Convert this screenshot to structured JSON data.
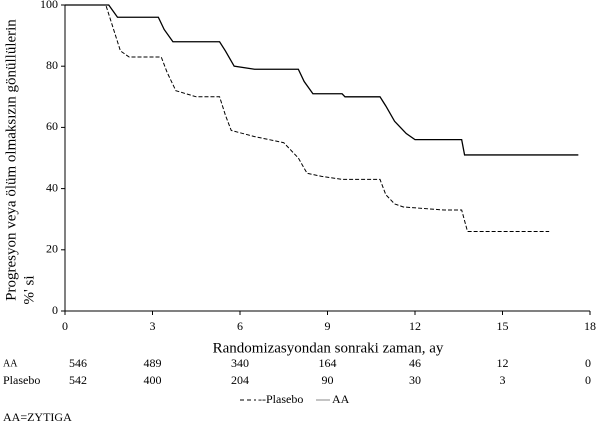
{
  "chart_data": {
    "type": "line",
    "y_label": [
      "Progresyon veya ölüm olmaksızın gönüllülerin",
      "%' si"
    ],
    "x_label": "Randomizasyondan sonraki zaman, ay",
    "xlim": [
      0,
      18
    ],
    "xticks": [
      0,
      3,
      6,
      9,
      12,
      15,
      18
    ],
    "ylim": [
      0,
      100
    ],
    "yticks": [
      0,
      20,
      40,
      60,
      80,
      100
    ],
    "series": [
      {
        "name": "AA",
        "color": "#000000",
        "dash": false,
        "x": [
          0,
          1.5,
          1.8,
          3.2,
          3.4,
          3.7,
          5.3,
          5.5,
          5.8,
          6.5,
          8.0,
          8.2,
          8.5,
          9.5,
          9.6,
          10.8,
          11.0,
          11.3,
          11.7,
          12.0,
          13.6,
          13.7,
          17.6
        ],
        "values": [
          100,
          100,
          96,
          96,
          92,
          88,
          88,
          85,
          80,
          79,
          79,
          75,
          71,
          71,
          70,
          70,
          67,
          62,
          58,
          56,
          56,
          51,
          51
        ]
      },
      {
        "name": "Plasebo",
        "color": "#000000",
        "dash": true,
        "x": [
          0,
          1.4,
          1.9,
          2.2,
          3.3,
          3.5,
          3.8,
          4.5,
          5.3,
          5.5,
          5.7,
          6.5,
          7.5,
          8.0,
          8.3,
          8.8,
          9.5,
          10.8,
          11.0,
          11.3,
          11.6,
          13.0,
          13.6,
          13.8,
          16.6
        ],
        "values": [
          100,
          100,
          85,
          83,
          83,
          78,
          72,
          70,
          70,
          64,
          59,
          57,
          55,
          50,
          45,
          44,
          43,
          43,
          38,
          35,
          34,
          33,
          33,
          26,
          26
        ]
      }
    ],
    "risk_table": [
      {
        "label": "AA",
        "values": [
          546,
          489,
          340,
          164,
          46,
          12,
          0
        ]
      },
      {
        "label": "Plasebo",
        "values": [
          542,
          400,
          204,
          90,
          30,
          3,
          0
        ]
      }
    ],
    "legend": [
      "--Plasebo",
      "AA"
    ],
    "footnote": "AA=ZYTIGA"
  }
}
